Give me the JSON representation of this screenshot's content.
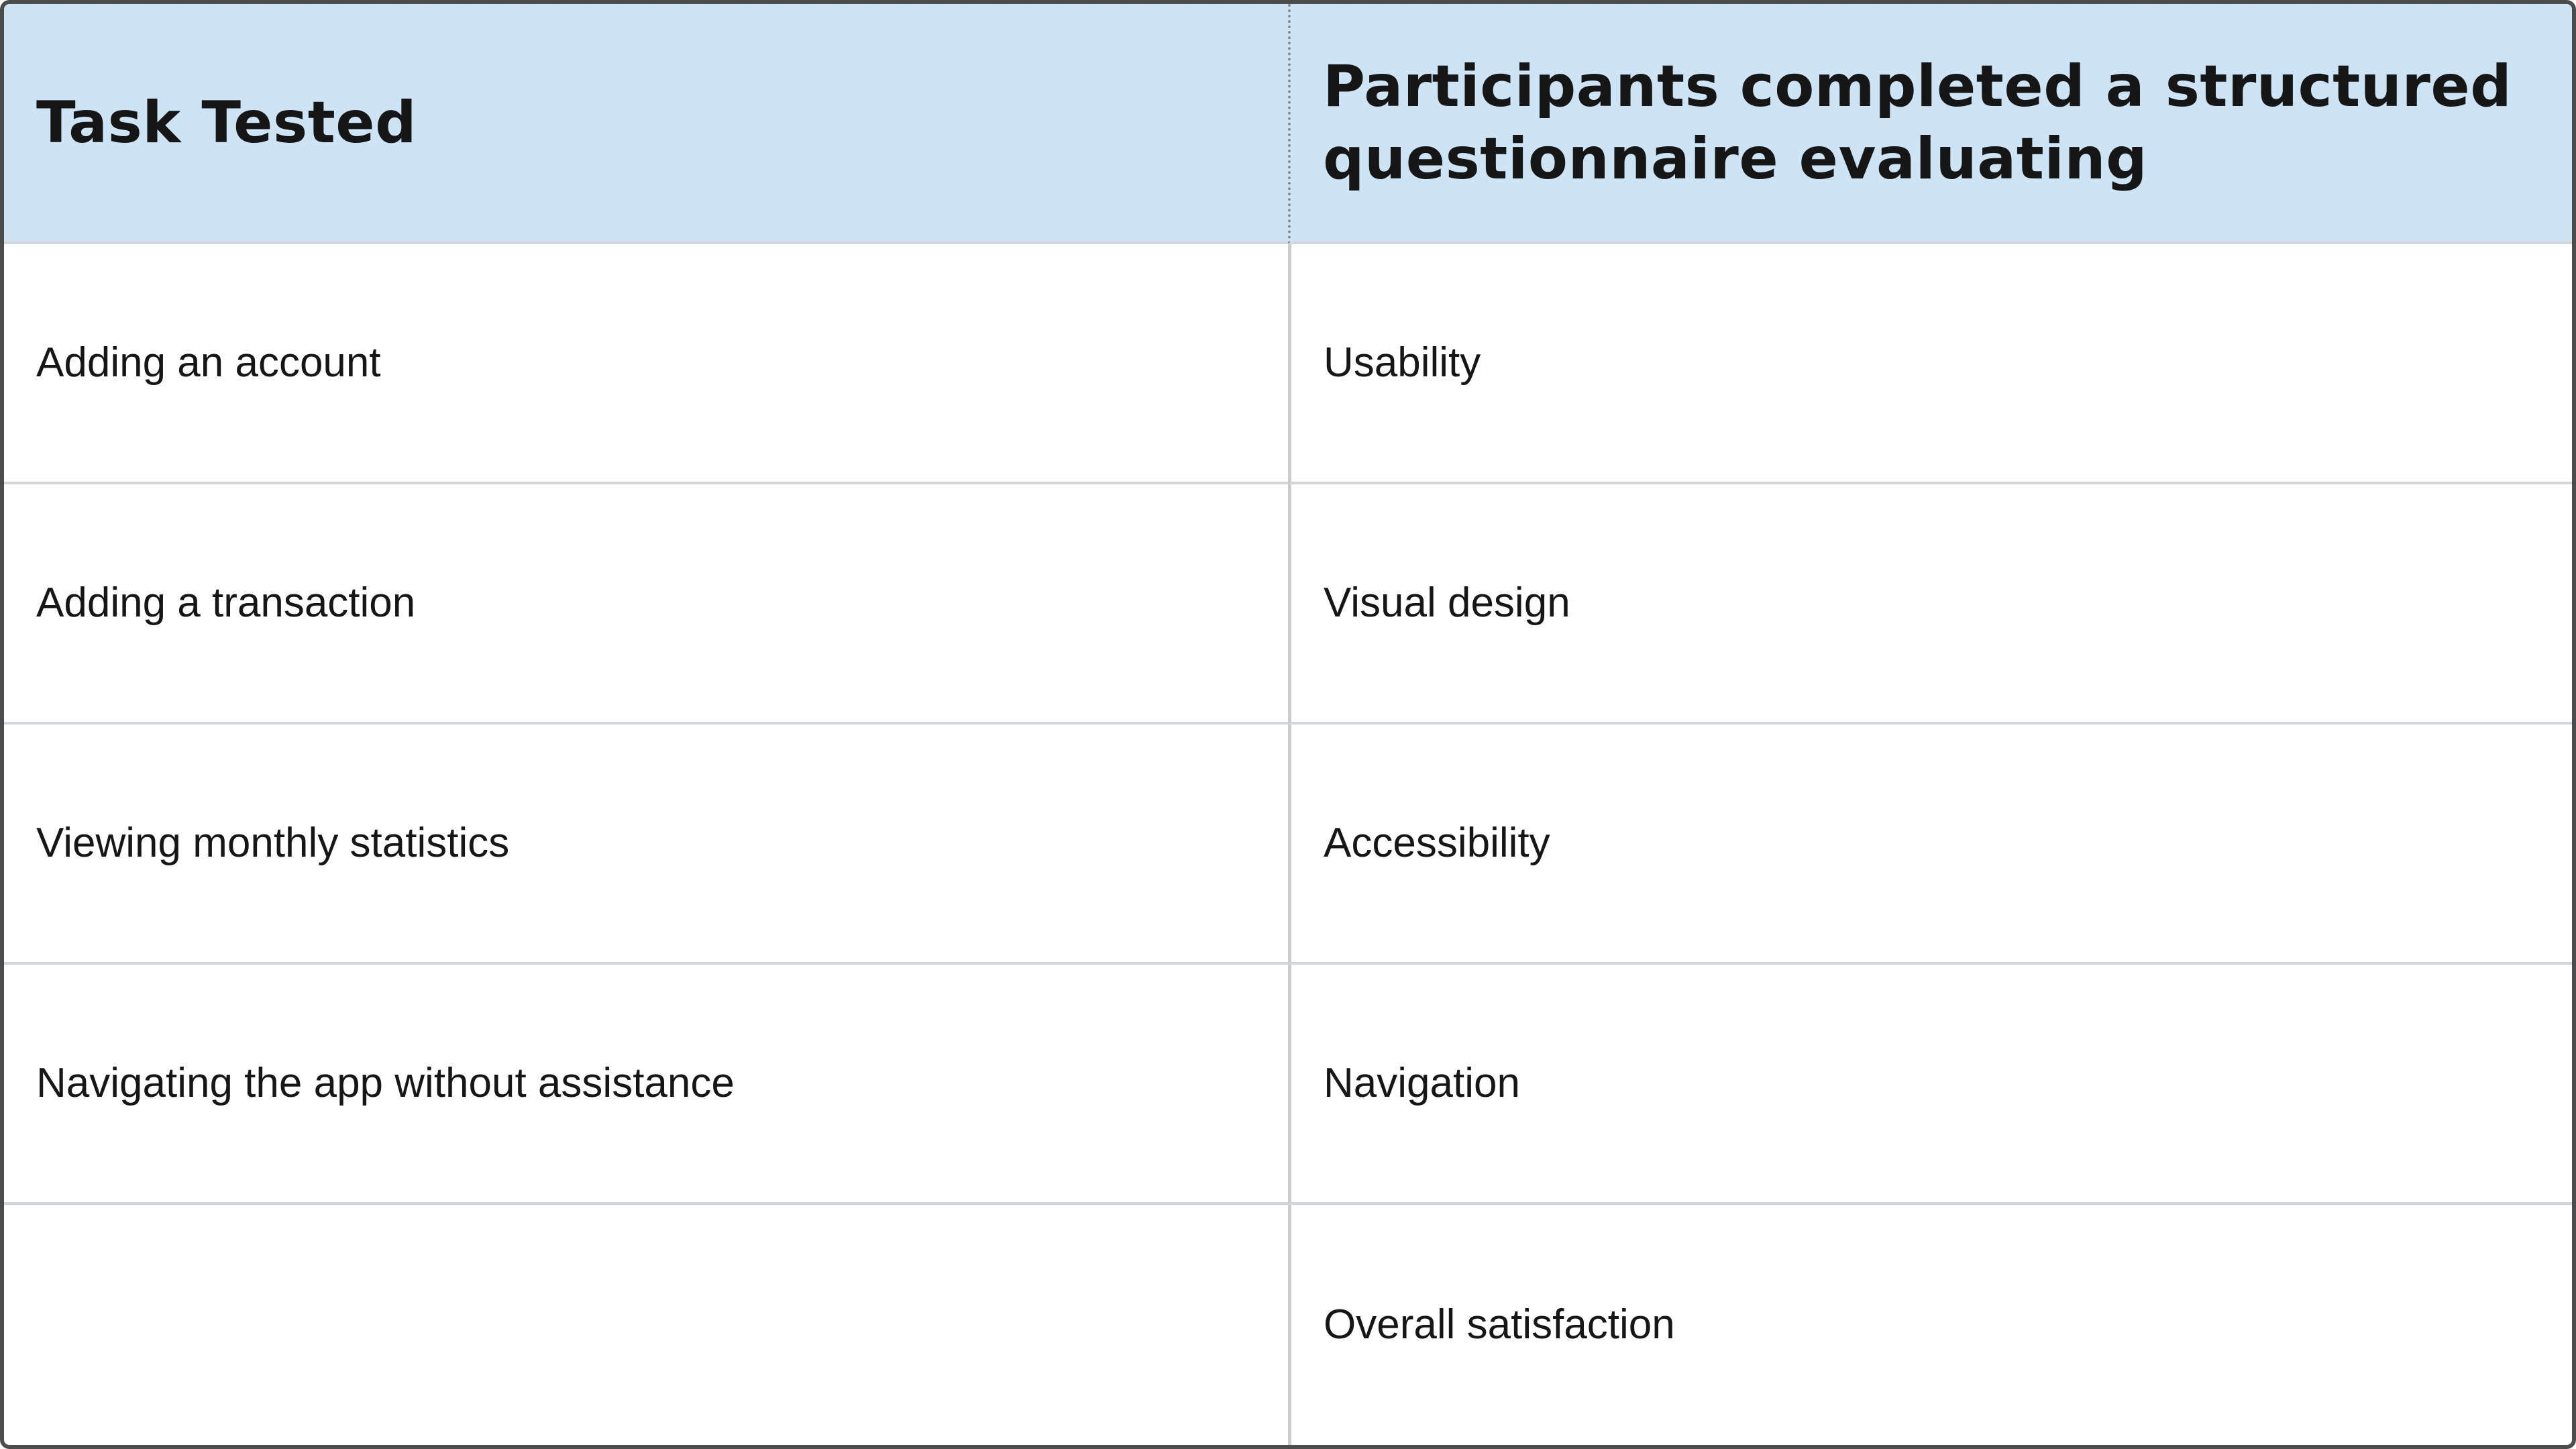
{
  "theme": {
    "header_bg": "#cde4f7",
    "outer_border": "#4c4c4c",
    "row_divider": "#d3d6d9",
    "col_divider": "#cccccc",
    "header_dotted_divider": "#8a8a8a",
    "text_color": "#161616"
  },
  "table": {
    "header": [
      "Task Tested",
      "Participants completed a structured questionnaire evaluating"
    ],
    "rows": [
      [
        "Adding an account",
        "Usability"
      ],
      [
        "Adding a transaction",
        "Visual design"
      ],
      [
        "Viewing monthly statistics",
        "Accessibility"
      ],
      [
        "Navigating the app without assistance",
        "Navigation"
      ],
      [
        "",
        "Overall satisfaction"
      ]
    ]
  }
}
